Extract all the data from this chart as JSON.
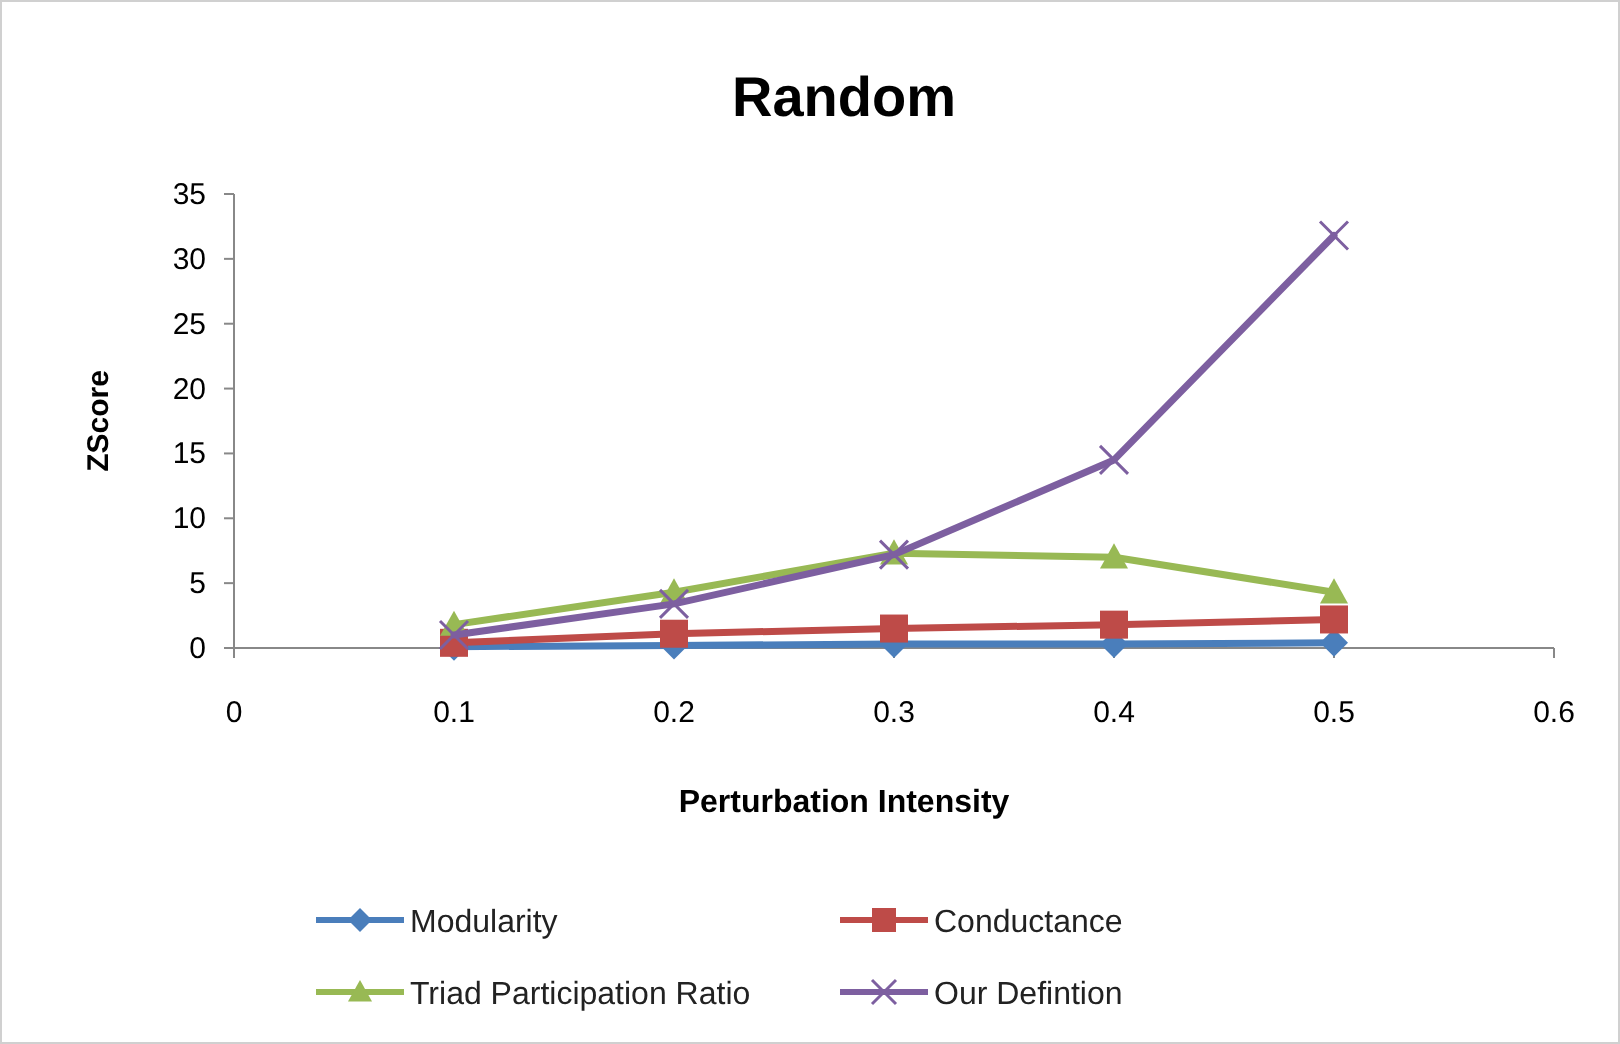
{
  "chart_data": {
    "type": "line",
    "title": "Random",
    "xlabel": "Perturbation Intensity",
    "ylabel": "ZScore",
    "x": [
      0.1,
      0.2,
      0.3,
      0.4,
      0.5
    ],
    "series": [
      {
        "name": "Modularity",
        "color": "#4a7ebb",
        "marker": "diamond",
        "values": [
          0.1,
          0.2,
          0.3,
          0.3,
          0.4
        ]
      },
      {
        "name": "Conductance",
        "color": "#be4b48",
        "marker": "square",
        "values": [
          0.4,
          1.1,
          1.5,
          1.8,
          2.2
        ]
      },
      {
        "name": "Triad Participation Ratio",
        "color": "#98b954",
        "marker": "triangle",
        "values": [
          1.8,
          4.3,
          7.3,
          7.0,
          4.3
        ]
      },
      {
        "name": "Our Defintion",
        "color": "#7d5fa0",
        "marker": "cross",
        "values": [
          1.0,
          3.4,
          7.2,
          14.5,
          31.8
        ]
      }
    ],
    "xlim": [
      0,
      0.6
    ],
    "xticks": [
      0,
      0.1,
      0.2,
      0.3,
      0.4,
      0.5,
      0.6
    ],
    "ylim": [
      0,
      35
    ],
    "yticks": [
      0,
      5,
      10,
      15,
      20,
      25,
      30,
      35
    ],
    "grid": false,
    "legend": "bottom"
  }
}
